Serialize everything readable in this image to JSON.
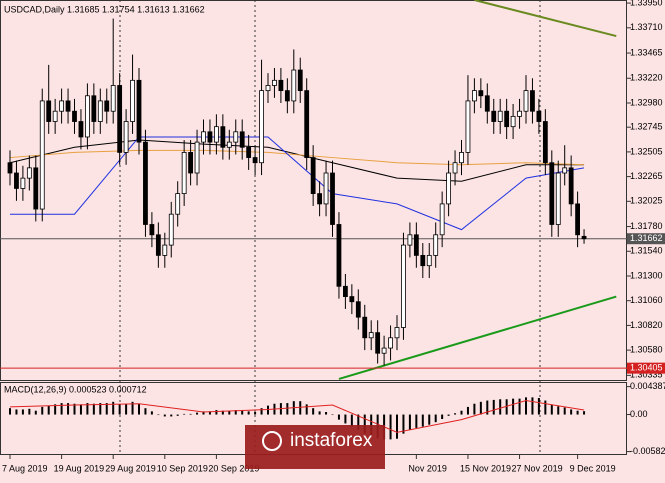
{
  "chart_data": {
    "type": "candlestick",
    "title": "USDCAD,Daily  1.31685 1.31754 1.31613 1.31662",
    "watermark": "instaforex",
    "categories": [
      "7 Aug 2019",
      null,
      null,
      null,
      null,
      null,
      null,
      null,
      "19 Aug 2019",
      null,
      null,
      null,
      null,
      null,
      null,
      null,
      "29 Aug 2019",
      null,
      null,
      null,
      null,
      null,
      null,
      null,
      "10 Sep 2019",
      null,
      null,
      null,
      null,
      null,
      null,
      null,
      "20 Sep 2019",
      null,
      null,
      null,
      null,
      null,
      null,
      null,
      null,
      null,
      null,
      null,
      null,
      null,
      null,
      null,
      null,
      null,
      null,
      null,
      null,
      null,
      null,
      null,
      null,
      null,
      null,
      null,
      null,
      null,
      null,
      "Nov 2019",
      null,
      null,
      null,
      null,
      null,
      null,
      null,
      "15 Nov 2019",
      null,
      null,
      null,
      null,
      null,
      null,
      null,
      "27 Nov 2019",
      null,
      null,
      null,
      null,
      null,
      null,
      null,
      null,
      "9 Dec 2019",
      null
    ],
    "ohlc": [
      [
        1.324,
        1.3252,
        1.3218,
        1.323
      ],
      [
        1.323,
        1.3242,
        1.3203,
        1.3215
      ],
      [
        1.3215,
        1.3237,
        1.3203,
        1.3225
      ],
      [
        1.3225,
        1.3247,
        1.3213,
        1.3235
      ],
      [
        1.3235,
        1.3247,
        1.3183,
        1.3195
      ],
      [
        1.3195,
        1.3312,
        1.3183,
        1.33
      ],
      [
        1.33,
        1.3335,
        1.3268,
        1.328
      ],
      [
        1.328,
        1.3302,
        1.3268,
        1.329
      ],
      [
        1.329,
        1.3312,
        1.3278,
        1.33
      ],
      [
        1.33,
        1.3312,
        1.3278,
        1.329
      ],
      [
        1.329,
        1.3302,
        1.3268,
        1.328
      ],
      [
        1.328,
        1.3292,
        1.3253,
        1.3265
      ],
      [
        1.3265,
        1.3317,
        1.3253,
        1.3305
      ],
      [
        1.3305,
        1.3317,
        1.3268,
        1.328
      ],
      [
        1.328,
        1.3312,
        1.3268,
        1.33
      ],
      [
        1.33,
        1.3312,
        1.3278,
        1.329
      ],
      [
        1.329,
        1.338,
        1.3278,
        1.3315
      ],
      [
        1.3315,
        1.3327,
        1.3238,
        1.325
      ],
      [
        1.325,
        1.3292,
        1.3238,
        1.328
      ],
      [
        1.328,
        1.3345,
        1.3268,
        1.332
      ],
      [
        1.332,
        1.3332,
        1.3248,
        1.326
      ],
      [
        1.326,
        1.3272,
        1.3168,
        1.318
      ],
      [
        1.318,
        1.3192,
        1.3158,
        1.317
      ],
      [
        1.317,
        1.3182,
        1.3138,
        1.315
      ],
      [
        1.315,
        1.3172,
        1.3138,
        1.316
      ],
      [
        1.316,
        1.3202,
        1.3148,
        1.319
      ],
      [
        1.319,
        1.3222,
        1.3178,
        1.321
      ],
      [
        1.321,
        1.3262,
        1.3198,
        1.325
      ],
      [
        1.325,
        1.3262,
        1.3218,
        1.323
      ],
      [
        1.323,
        1.3272,
        1.3218,
        1.326
      ],
      [
        1.326,
        1.3282,
        1.3248,
        1.327
      ],
      [
        1.327,
        1.3282,
        1.3248,
        1.326
      ],
      [
        1.326,
        1.3287,
        1.3248,
        1.3275
      ],
      [
        1.3275,
        1.3287,
        1.3243,
        1.3255
      ],
      [
        1.3255,
        1.3272,
        1.3243,
        1.326
      ],
      [
        1.326,
        1.3282,
        1.3248,
        1.327
      ],
      [
        1.327,
        1.3282,
        1.3243,
        1.3255
      ],
      [
        1.3255,
        1.3267,
        1.3233,
        1.3245
      ],
      [
        1.3245,
        1.3257,
        1.3228,
        1.324
      ],
      [
        1.324,
        1.334,
        1.3228,
        1.331
      ],
      [
        1.331,
        1.3327,
        1.3298,
        1.3315
      ],
      [
        1.3315,
        1.3332,
        1.3303,
        1.332
      ],
      [
        1.332,
        1.3332,
        1.3298,
        1.331
      ],
      [
        1.331,
        1.3322,
        1.3288,
        1.33
      ],
      [
        1.33,
        1.335,
        1.3288,
        1.333
      ],
      [
        1.333,
        1.3342,
        1.3298,
        1.331
      ],
      [
        1.331,
        1.3322,
        1.3233,
        1.3245
      ],
      [
        1.3245,
        1.3257,
        1.3198,
        1.321
      ],
      [
        1.321,
        1.3222,
        1.3188,
        1.32
      ],
      [
        1.32,
        1.3242,
        1.3188,
        1.323
      ],
      [
        1.323,
        1.3242,
        1.3168,
        1.318
      ],
      [
        1.318,
        1.3192,
        1.3108,
        1.312
      ],
      [
        1.312,
        1.3132,
        1.3098,
        1.311
      ],
      [
        1.311,
        1.3122,
        1.3093,
        1.3105
      ],
      [
        1.3105,
        1.3117,
        1.3078,
        1.309
      ],
      [
        1.309,
        1.3102,
        1.3058,
        1.307
      ],
      [
        1.307,
        1.3087,
        1.3058,
        1.3075
      ],
      [
        1.3075,
        1.3087,
        1.3045,
        1.3055
      ],
      [
        1.3055,
        1.3072,
        1.3043,
        1.306
      ],
      [
        1.306,
        1.3082,
        1.3048,
        1.307
      ],
      [
        1.307,
        1.3092,
        1.3058,
        1.308
      ],
      [
        1.308,
        1.3172,
        1.3068,
        1.316
      ],
      [
        1.316,
        1.3182,
        1.3148,
        1.317
      ],
      [
        1.317,
        1.3182,
        1.3138,
        1.315
      ],
      [
        1.315,
        1.3162,
        1.3128,
        1.314
      ],
      [
        1.314,
        1.3162,
        1.3128,
        1.315
      ],
      [
        1.315,
        1.3182,
        1.3138,
        1.317
      ],
      [
        1.317,
        1.3212,
        1.3158,
        1.32
      ],
      [
        1.32,
        1.3242,
        1.3188,
        1.323
      ],
      [
        1.323,
        1.3252,
        1.3218,
        1.324
      ],
      [
        1.324,
        1.3262,
        1.3228,
        1.325
      ],
      [
        1.325,
        1.3325,
        1.3238,
        1.33
      ],
      [
        1.33,
        1.3322,
        1.3288,
        1.331
      ],
      [
        1.331,
        1.3322,
        1.3293,
        1.3305
      ],
      [
        1.3305,
        1.3317,
        1.3278,
        1.329
      ],
      [
        1.329,
        1.3302,
        1.3268,
        1.328
      ],
      [
        1.328,
        1.3302,
        1.3268,
        1.329
      ],
      [
        1.329,
        1.3302,
        1.3263,
        1.3275
      ],
      [
        1.3275,
        1.3297,
        1.3263,
        1.3285
      ],
      [
        1.3285,
        1.3302,
        1.3273,
        1.329
      ],
      [
        1.329,
        1.3325,
        1.3278,
        1.331
      ],
      [
        1.331,
        1.3322,
        1.3278,
        1.329
      ],
      [
        1.329,
        1.3302,
        1.3268,
        1.328
      ],
      [
        1.328,
        1.3292,
        1.3228,
        1.324
      ],
      [
        1.324,
        1.3252,
        1.3168,
        1.318
      ],
      [
        1.318,
        1.3242,
        1.3168,
        1.323
      ],
      [
        1.323,
        1.3257,
        1.3218,
        1.3235
      ],
      [
        1.3235,
        1.3247,
        1.3188,
        1.32
      ],
      [
        1.32,
        1.3212,
        1.3158,
        1.317
      ],
      [
        1.31685,
        1.31754,
        1.31613,
        1.31662
      ]
    ],
    "series": [
      {
        "color": "#000000",
        "x": [
          0,
          10,
          20,
          30,
          40,
          50,
          60,
          70,
          80,
          89
        ],
        "values": [
          1.324,
          1.3255,
          1.3262,
          1.3258,
          1.3255,
          1.324,
          1.3225,
          1.3222,
          1.3238,
          1.3238
        ]
      },
      {
        "color": "#e8a040",
        "x": [
          0,
          10,
          20,
          30,
          40,
          50,
          60,
          70,
          80,
          89
        ],
        "values": [
          1.3245,
          1.325,
          1.3252,
          1.3252,
          1.325,
          1.3245,
          1.324,
          1.3238,
          1.324,
          1.3238
        ]
      },
      {
        "color": "#2030e0",
        "x": [
          0,
          10,
          20,
          30,
          40,
          50,
          60,
          70,
          80,
          89
        ],
        "values": [
          1.319,
          1.319,
          1.3265,
          1.3265,
          1.3265,
          1.321,
          1.32,
          1.3175,
          1.3225,
          1.3235
        ]
      }
    ],
    "trendlines": [
      {
        "color": "#1a9a1a",
        "x": [
          51,
          94
        ],
        "values": [
          1.303,
          1.311
        ]
      },
      {
        "color": "#6a8a20",
        "x": [
          72,
          94
        ],
        "values": [
          1.3398,
          1.3363
        ]
      }
    ],
    "hlines": [
      {
        "value": 1.30405,
        "label": "1.30405",
        "color": "#d42020"
      },
      {
        "value": 1.31662,
        "label": "1.31662",
        "color": "#555555"
      }
    ],
    "ylim": [
      1.3029,
      1.3398
    ],
    "yticks": [
      {
        "value": 1.3395,
        "label": "1.33950"
      },
      {
        "value": 1.3371,
        "label": "1.33710"
      },
      {
        "value": 1.33465,
        "label": "1.33465"
      },
      {
        "value": 1.3322,
        "label": "1.33220"
      },
      {
        "value": 1.3298,
        "label": "1.32980"
      },
      {
        "value": 1.32745,
        "label": "1.32745"
      },
      {
        "value": 1.32505,
        "label": "1.32505"
      },
      {
        "value": 1.32265,
        "label": "1.32265"
      },
      {
        "value": 1.32025,
        "label": "1.32025"
      },
      {
        "value": 1.3178,
        "label": "1.31780"
      },
      {
        "value": 1.3154,
        "label": "1.31540"
      },
      {
        "value": 1.313,
        "label": "1.31300"
      },
      {
        "value": 1.3106,
        "label": "1.31060"
      },
      {
        "value": 1.3082,
        "label": "1.30820"
      },
      {
        "value": 1.3058,
        "label": "1.30580"
      },
      {
        "value": 1.30335,
        "label": "1.30335"
      }
    ],
    "macd": {
      "label": "MACD(12,26,9) 0.000523 0.000712",
      "ylim": [
        -0.0062,
        0.0048
      ],
      "yticks": [
        0.004387,
        {
          "value": 0,
          "label": "0.00"
        },
        -0.005821
      ],
      "histogram": [
        0.001,
        0.0008,
        0.0008,
        0.0009,
        0.0006,
        0.0012,
        0.0014,
        0.0016,
        0.0018,
        0.0018,
        0.0017,
        0.0016,
        0.0018,
        0.0017,
        0.0018,
        0.0018,
        0.002,
        0.0016,
        0.0016,
        0.002,
        0.0017,
        0.001,
        0.0005,
        0.0,
        -0.0003,
        -0.0003,
        -0.0002,
        0.0001,
        0.0001,
        0.0003,
        0.0005,
        0.0005,
        0.0007,
        0.0006,
        0.0006,
        0.0007,
        0.0006,
        0.0005,
        0.0004,
        0.001,
        0.0014,
        0.0017,
        0.0018,
        0.0018,
        0.0021,
        0.0021,
        0.0016,
        0.001,
        0.0005,
        0.0004,
        0.0,
        -0.0008,
        -0.0014,
        -0.0019,
        -0.0024,
        -0.003,
        -0.0033,
        -0.0037,
        -0.0039,
        -0.0039,
        -0.0038,
        -0.003,
        -0.0024,
        -0.0021,
        -0.0019,
        -0.0016,
        -0.0012,
        -0.0007,
        -0.0002,
        0.0002,
        0.0006,
        0.0012,
        0.0017,
        0.002,
        0.0022,
        0.0023,
        0.0024,
        0.0024,
        0.0025,
        0.0025,
        0.0027,
        0.0027,
        0.0026,
        0.0022,
        0.0015,
        0.0013,
        0.0011,
        0.0008,
        0.0006,
        0.000523
      ],
      "signal": {
        "color": "#e02020",
        "x": [
          0,
          10,
          20,
          30,
          40,
          50,
          60,
          70,
          80,
          89
        ],
        "values": [
          0.0012,
          0.0015,
          0.0017,
          0.0004,
          0.0008,
          0.0015,
          -0.0028,
          -0.0008,
          0.0022,
          0.000712
        ]
      }
    }
  }
}
